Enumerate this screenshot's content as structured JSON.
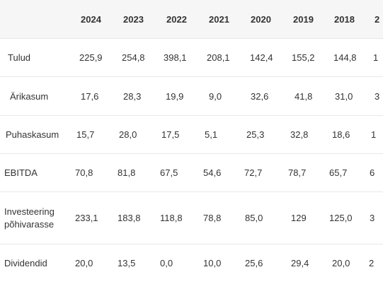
{
  "table": {
    "years": [
      "2024",
      "2023",
      "2022",
      "2021",
      "2020",
      "2019",
      "2018",
      "2"
    ],
    "rows": [
      {
        "label": "Tulud",
        "values": [
          "225,9",
          "254,8",
          "398,1",
          "208,1",
          "142,4",
          "155,2",
          "144,8",
          "1"
        ]
      },
      {
        "label": "Ärikasum",
        "values": [
          "17,6",
          "28,3",
          "19,9",
          "9,0",
          "32,6",
          "41,8",
          "31,0",
          "3"
        ]
      },
      {
        "label": "Puhaskasum",
        "values": [
          "15,7",
          "28,0",
          "17,5",
          "5,1",
          "25,3",
          "32,8",
          "18,6",
          "1"
        ]
      },
      {
        "label": "EBITDA",
        "values": [
          "70,8",
          "81,8",
          "67,5",
          "54,6",
          "72,7",
          "78,7",
          "65,7",
          "6"
        ]
      },
      {
        "label": "Investeering põhivarasse",
        "values": [
          "233,1",
          "183,8",
          "118,8",
          "78,8",
          "85,0",
          "129",
          "125,0",
          "3"
        ]
      },
      {
        "label": "Dividendid",
        "values": [
          "20,0",
          "13,5",
          "0,0",
          "10,0",
          "25,6",
          "29,4",
          "20,0",
          "2"
        ]
      }
    ]
  }
}
